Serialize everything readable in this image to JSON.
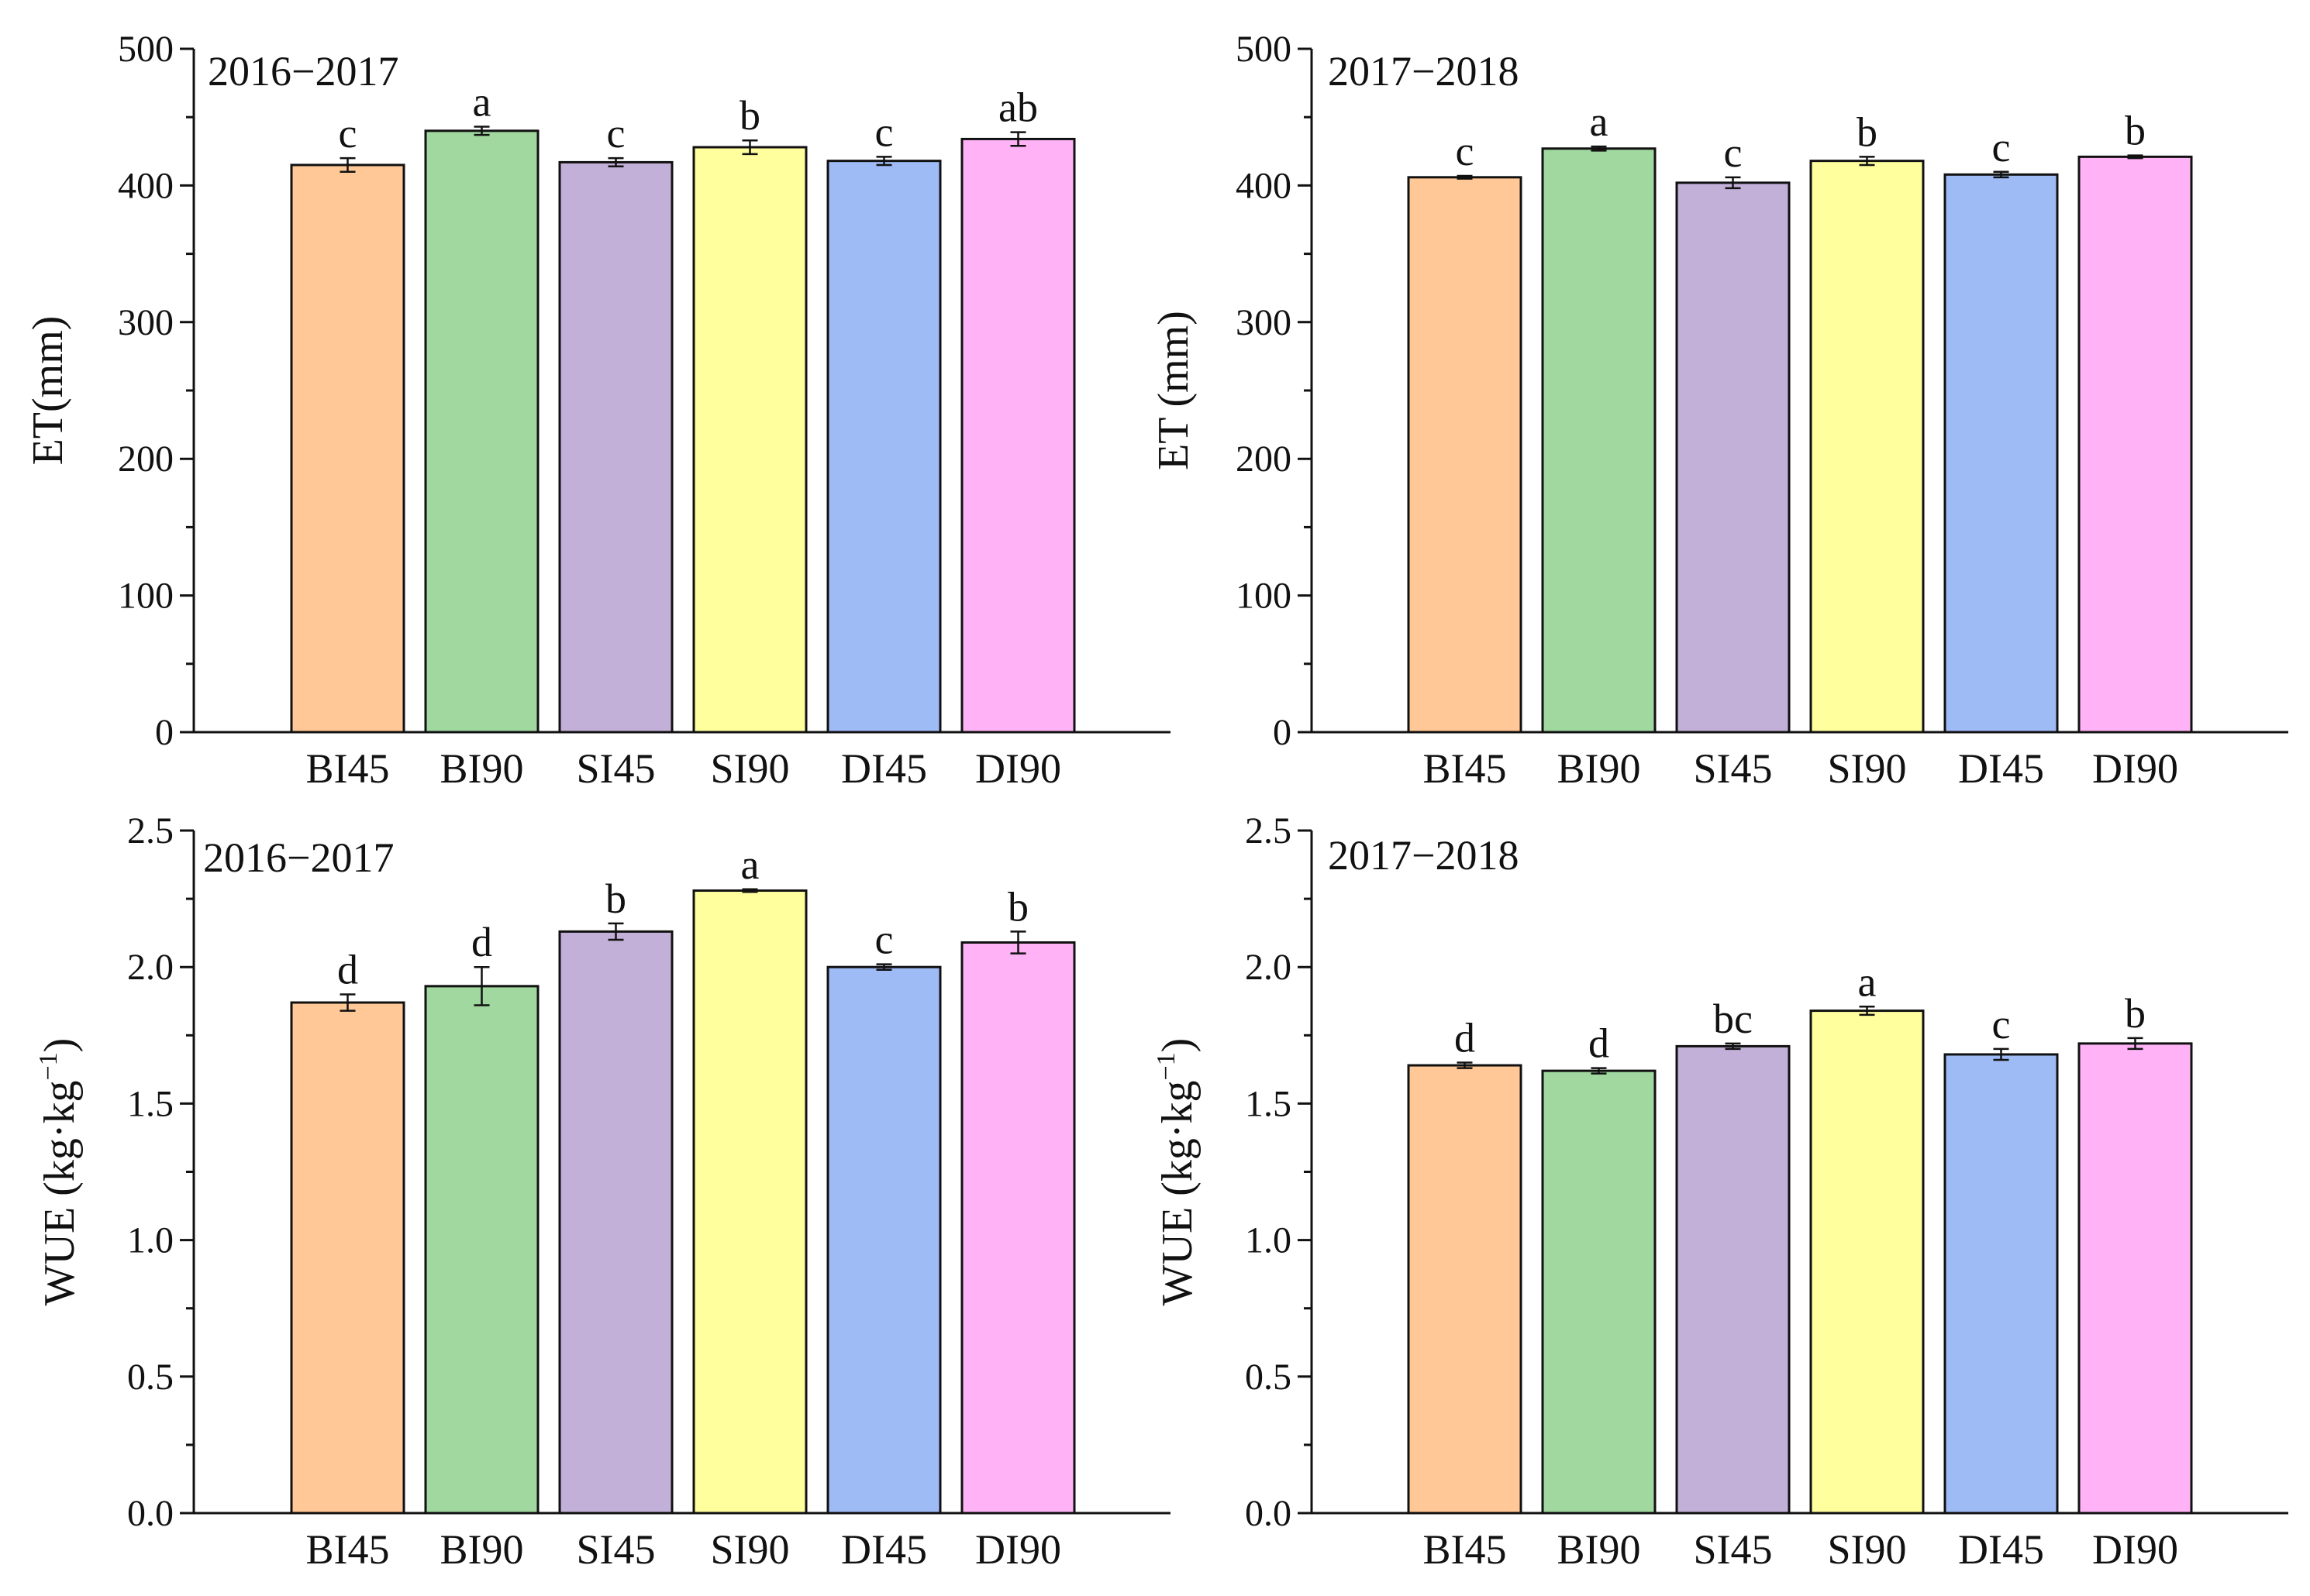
{
  "chart_data": [
    {
      "type": "bar",
      "panel": "top-left",
      "title": "2016−2017",
      "ylabel": "ET(mm)",
      "ylabel_sup": "",
      "ylabel_suffix": "",
      "xlabel": "",
      "ylim": [
        0,
        500
      ],
      "yticks": [
        0,
        100,
        200,
        300,
        400,
        500
      ],
      "ytick_labels": [
        "0",
        "100",
        "200",
        "300",
        "400",
        "500"
      ],
      "minor_ticks": true,
      "categories": [
        "BI45",
        "BI90",
        "SI45",
        "SI90",
        "DI45",
        "DI90"
      ],
      "values": [
        415,
        440,
        417,
        428,
        418,
        434
      ],
      "errors": [
        5,
        3,
        3,
        5,
        3,
        5
      ],
      "significance": [
        "c",
        "a",
        "c",
        "b",
        "c",
        "ab"
      ],
      "colors": [
        "#ffc896",
        "#a0d8a0",
        "#c3b0d8",
        "#ffff9e",
        "#9ebbf5",
        "#ffb3f6"
      ]
    },
    {
      "type": "bar",
      "panel": "top-right",
      "title": "2017−2018",
      "ylabel": "ET (mm)",
      "ylabel_sup": "",
      "ylabel_suffix": "",
      "xlabel": "",
      "ylim": [
        0,
        500
      ],
      "yticks": [
        0,
        100,
        200,
        300,
        400,
        500
      ],
      "ytick_labels": [
        "0",
        "100",
        "200",
        "300",
        "400",
        "500"
      ],
      "minor_ticks": true,
      "categories": [
        "BI45",
        "BI90",
        "SI45",
        "SI90",
        "DI45",
        "DI90"
      ],
      "values": [
        406,
        427,
        402,
        418,
        408,
        421
      ],
      "errors": [
        1,
        1.5,
        4,
        3,
        2,
        1
      ],
      "significance": [
        "c",
        "a",
        "c",
        "b",
        "c",
        "b"
      ],
      "colors": [
        "#ffc896",
        "#a0d8a0",
        "#c3b0d8",
        "#ffff9e",
        "#9ebbf5",
        "#ffb3f6"
      ]
    },
    {
      "type": "bar",
      "panel": "bottom-left",
      "title": "2016−2017",
      "ylabel": "WUE (kg·kg",
      "ylabel_sup": "−1",
      "ylabel_suffix": ")",
      "xlabel": "",
      "ylim": [
        0,
        2.5
      ],
      "yticks": [
        0,
        0.5,
        1.0,
        1.5,
        2.0,
        2.5
      ],
      "ytick_labels": [
        "0.0",
        "0.5",
        "1.0",
        "1.5",
        "2.0",
        "2.5"
      ],
      "minor_ticks": true,
      "categories": [
        "BI45",
        "BI90",
        "SI45",
        "SI90",
        "DI45",
        "DI90"
      ],
      "values": [
        1.87,
        1.93,
        2.13,
        2.28,
        2.0,
        2.09
      ],
      "errors": [
        0.03,
        0.07,
        0.03,
        0.005,
        0.01,
        0.04
      ],
      "significance": [
        "d",
        "d",
        "b",
        "a",
        "c",
        "b"
      ],
      "colors": [
        "#ffc896",
        "#a0d8a0",
        "#c3b0d8",
        "#ffff9e",
        "#9ebbf5",
        "#ffb3f6"
      ]
    },
    {
      "type": "bar",
      "panel": "bottom-right",
      "title": "2017−2018",
      "ylabel": "WUE (kg·kg",
      "ylabel_sup": "−1",
      "ylabel_suffix": ")",
      "xlabel": "",
      "ylim": [
        0,
        2.5
      ],
      "yticks": [
        0,
        0.5,
        1.0,
        1.5,
        2.0,
        2.5
      ],
      "ytick_labels": [
        "0.0",
        "0.5",
        "1.0",
        "1.5",
        "2.0",
        "2.5"
      ],
      "minor_ticks": true,
      "categories": [
        "BI45",
        "BI90",
        "SI45",
        "SI90",
        "DI45",
        "DI90"
      ],
      "values": [
        1.64,
        1.62,
        1.71,
        1.84,
        1.68,
        1.72
      ],
      "errors": [
        0.01,
        0.01,
        0.01,
        0.015,
        0.02,
        0.02
      ],
      "significance": [
        "d",
        "d",
        "bc",
        "a",
        "c",
        "b"
      ],
      "colors": [
        "#ffc896",
        "#a0d8a0",
        "#c3b0d8",
        "#ffff9e",
        "#9ebbf5",
        "#ffb3f6"
      ]
    }
  ]
}
